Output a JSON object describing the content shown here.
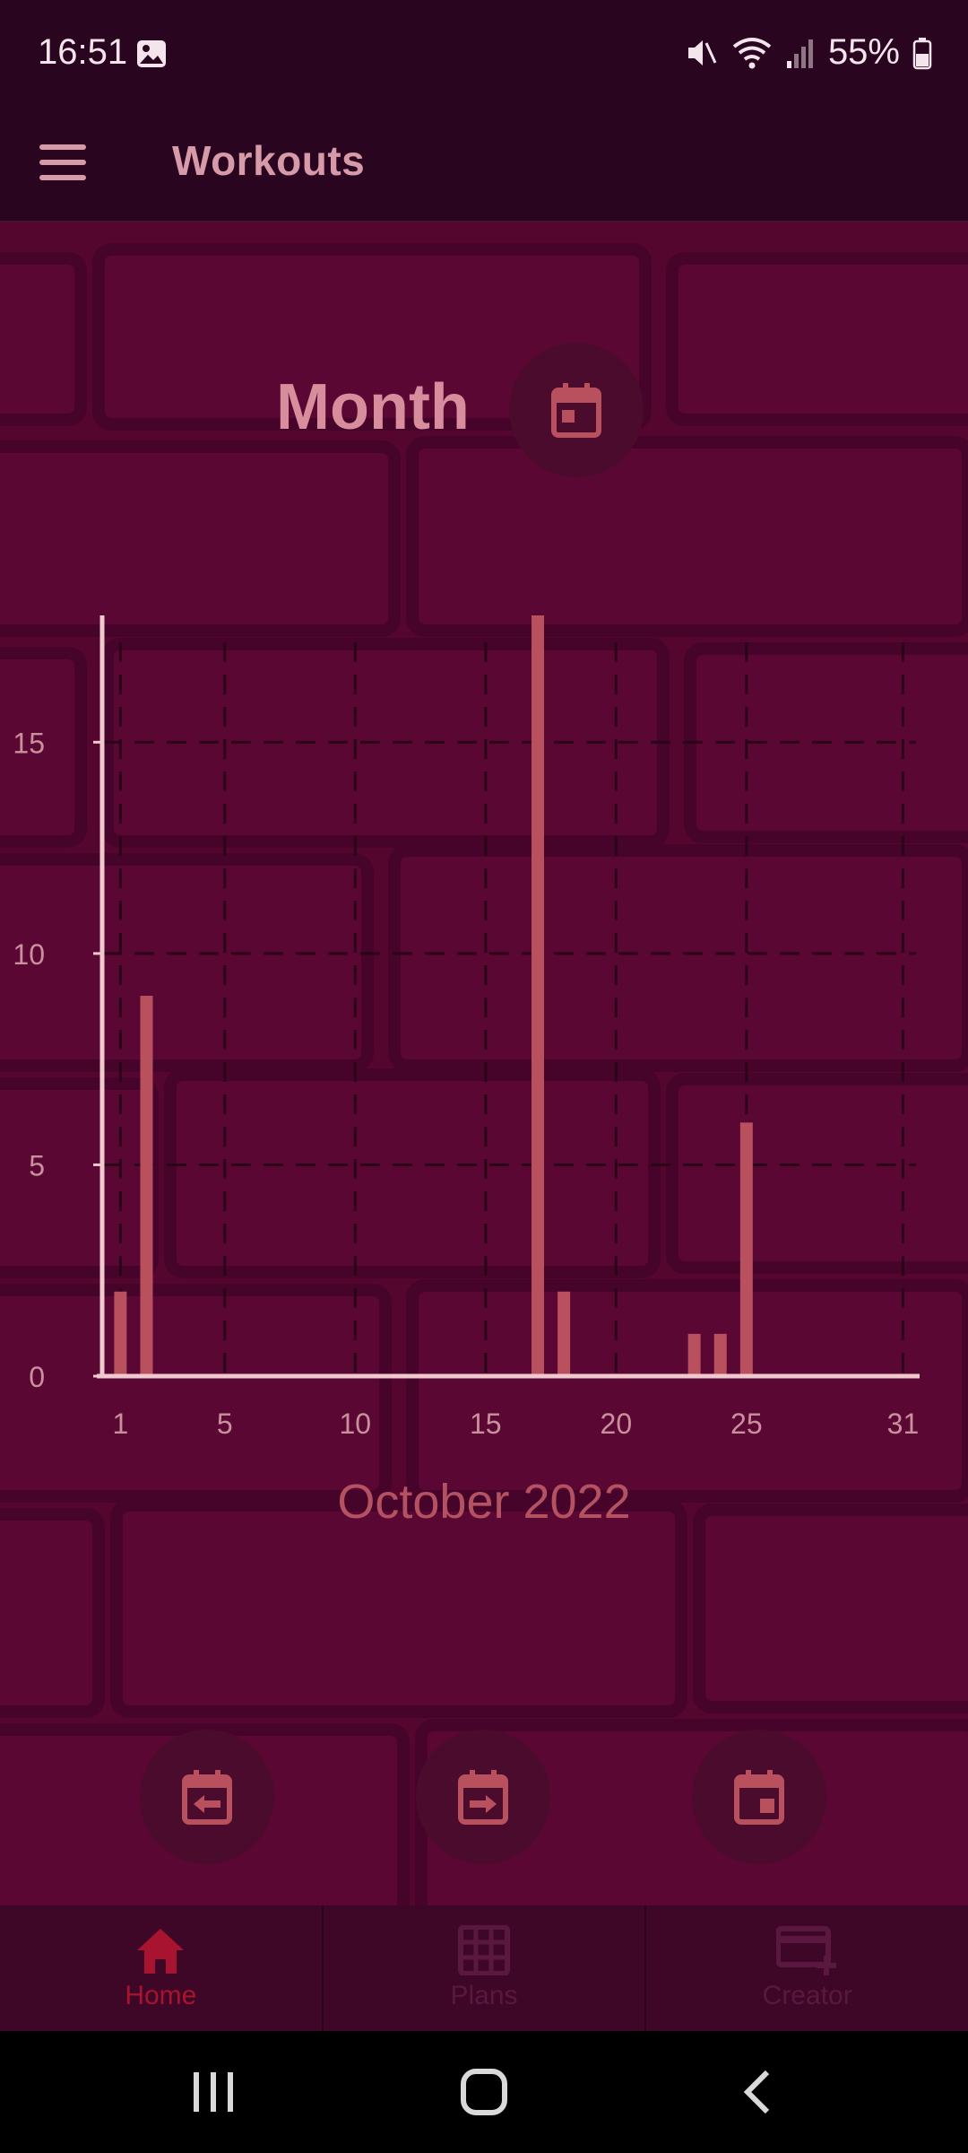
{
  "status": {
    "time": "16:51",
    "battery": "55%",
    "icons": [
      "photo-icon",
      "mute-icon",
      "wifi-icon",
      "signal-icon",
      "battery-icon"
    ]
  },
  "app_bar": {
    "title": "Workouts",
    "menu_icon": "menu-icon"
  },
  "header": {
    "period_label": "Month",
    "calendar_icon": "calendar-icon"
  },
  "chart_data": {
    "type": "bar",
    "x": [
      1,
      2,
      17,
      18,
      23,
      24,
      25
    ],
    "values": [
      2,
      9,
      18,
      2,
      1,
      1,
      6
    ],
    "xlim": [
      0.3,
      31.5
    ],
    "ylim": [
      0,
      18
    ],
    "x_ticks": [
      1,
      5,
      10,
      15,
      20,
      25,
      31
    ],
    "y_ticks": [
      0,
      5,
      10,
      15
    ],
    "grid": true,
    "xlabel": "October 2022",
    "bar_color": "#b9505e",
    "axis_color": "#f0c9cf"
  },
  "period_controls": [
    {
      "name": "previous-month-button",
      "icon": "calendar-arrow-left-icon"
    },
    {
      "name": "next-month-button",
      "icon": "calendar-arrow-right-icon"
    },
    {
      "name": "today-button",
      "icon": "calendar-today-icon"
    }
  ],
  "bottom_nav": {
    "items": [
      {
        "label": "Home",
        "icon": "home-icon",
        "active": true
      },
      {
        "label": "Plans",
        "icon": "grid-icon",
        "active": false
      },
      {
        "label": "Creator",
        "icon": "card-add-icon",
        "active": false
      }
    ],
    "active_color": "#a8132f",
    "inactive_color": "#5a1840"
  },
  "system_nav": [
    "recents-button",
    "home-button",
    "back-button"
  ]
}
